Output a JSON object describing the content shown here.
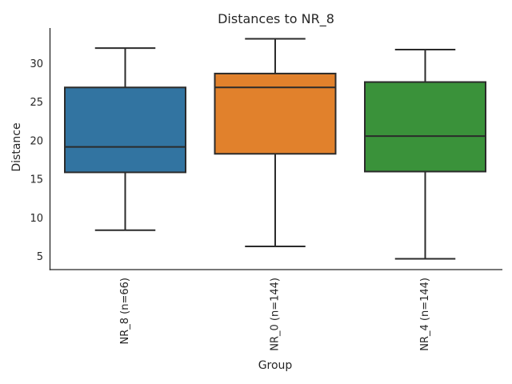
{
  "chart_data": {
    "type": "boxplot",
    "title": "Distances to NR_8",
    "xlabel": "Group",
    "ylabel": "Distance",
    "categories": [
      "NR_8 (n=66)",
      "NR_0 (n=144)",
      "NR_4 (n=144)"
    ],
    "yticks": [
      5,
      10,
      15,
      20,
      25,
      30
    ],
    "ylim": [
      3.3,
      34.6
    ],
    "grid": "off",
    "legend": "none",
    "series": [
      {
        "name": "NR_8 (n=66)",
        "color": "#3274a1",
        "whisker_low": 8.4,
        "q1": 15.9,
        "median": 19.2,
        "q3": 26.9,
        "whisker_high": 32.0
      },
      {
        "name": "NR_0 (n=144)",
        "color": "#e1812c",
        "whisker_low": 6.3,
        "q1": 18.3,
        "median": 26.9,
        "q3": 28.7,
        "whisker_high": 33.2
      },
      {
        "name": "NR_4 (n=144)",
        "color": "#3a923a",
        "whisker_low": 4.7,
        "q1": 16.0,
        "median": 20.6,
        "q3": 27.6,
        "whisker_high": 31.8
      }
    ],
    "styles": {
      "box_edge_color": "#2b2b2b",
      "spine_color": "#262626",
      "text_color": "#262626",
      "background_color": "#ffffff"
    }
  }
}
